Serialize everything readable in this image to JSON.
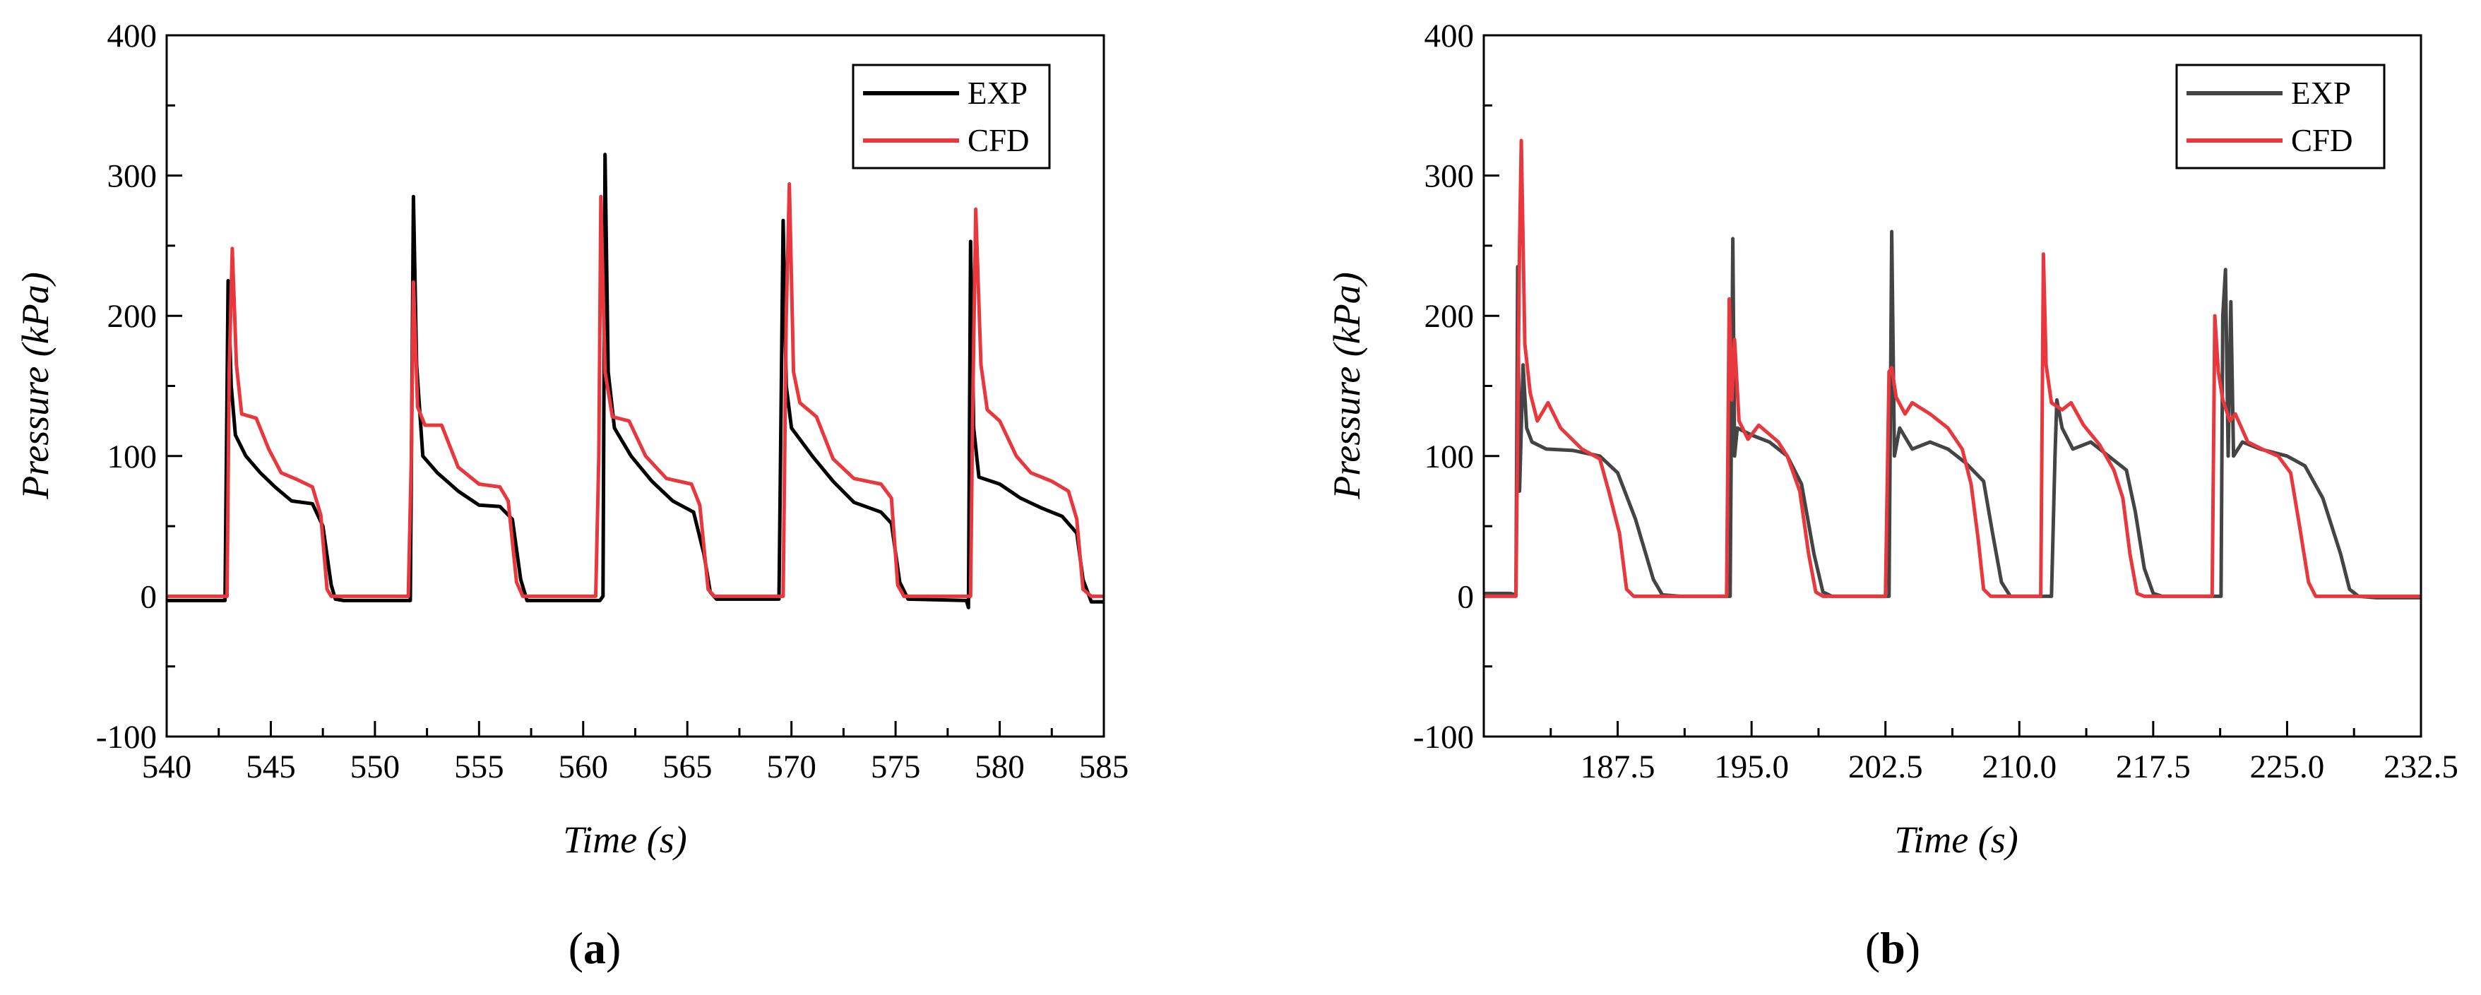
{
  "chart_data": [
    {
      "type": "line",
      "panel_label": "a",
      "xlabel": "Time (s)",
      "ylabel": "Pressure (kPa)",
      "xlim": [
        540,
        585
      ],
      "ylim": [
        -100,
        400
      ],
      "xticks": [
        540,
        545,
        550,
        555,
        560,
        565,
        570,
        575,
        580,
        585
      ],
      "yticks": [
        -100,
        0,
        100,
        200,
        300,
        400
      ],
      "xtick_labels": [
        "540",
        "545",
        "550",
        "555",
        "560",
        "565",
        "570",
        "575",
        "580",
        "585"
      ],
      "ytick_labels": [
        "-100",
        "0",
        "100",
        "200",
        "300",
        "400"
      ],
      "legend_position": "top-right",
      "series": [
        {
          "name": "EXP",
          "color": "#000000",
          "points": [
            [
              540,
              -3
            ],
            [
              542.8,
              -3
            ],
            [
              542.95,
              225
            ],
            [
              543.1,
              150
            ],
            [
              543.3,
              115
            ],
            [
              543.8,
              100
            ],
            [
              544.5,
              88
            ],
            [
              545.2,
              78
            ],
            [
              546,
              68
            ],
            [
              547,
              66
            ],
            [
              547.5,
              50
            ],
            [
              547.9,
              8
            ],
            [
              548.1,
              -2
            ],
            [
              548.5,
              -3
            ],
            [
              551.7,
              -3
            ],
            [
              551.85,
              285
            ],
            [
              552.0,
              165
            ],
            [
              552.3,
              100
            ],
            [
              553,
              88
            ],
            [
              554,
              75
            ],
            [
              555,
              65
            ],
            [
              556,
              64
            ],
            [
              556.6,
              55
            ],
            [
              557,
              12
            ],
            [
              557.3,
              -3
            ],
            [
              560.8,
              -3
            ],
            [
              560.95,
              0
            ],
            [
              561.05,
              315
            ],
            [
              561.2,
              160
            ],
            [
              561.5,
              120
            ],
            [
              562.3,
              100
            ],
            [
              563.3,
              82
            ],
            [
              564.3,
              68
            ],
            [
              565.3,
              60
            ],
            [
              565.8,
              30
            ],
            [
              566.1,
              3
            ],
            [
              566.4,
              -2
            ],
            [
              569.4,
              -2
            ],
            [
              569.6,
              268
            ],
            [
              569.75,
              150
            ],
            [
              570,
              120
            ],
            [
              571,
              100
            ],
            [
              572,
              82
            ],
            [
              573,
              67
            ],
            [
              574.3,
              60
            ],
            [
              574.8,
              52
            ],
            [
              575.2,
              10
            ],
            [
              575.6,
              -2
            ],
            [
              578.4,
              -3
            ],
            [
              578.5,
              -8
            ],
            [
              578.6,
              253
            ],
            [
              578.75,
              120
            ],
            [
              579,
              85
            ],
            [
              580,
              80
            ],
            [
              581,
              70
            ],
            [
              582,
              63
            ],
            [
              583,
              57
            ],
            [
              583.7,
              45
            ],
            [
              584,
              12
            ],
            [
              584.4,
              -4
            ],
            [
              585,
              -4
            ]
          ]
        },
        {
          "name": "CFD",
          "color": "#e8383d",
          "points": [
            [
              540,
              0
            ],
            [
              542.9,
              0
            ],
            [
              543.0,
              160
            ],
            [
              543.15,
              248
            ],
            [
              543.35,
              165
            ],
            [
              543.6,
              130
            ],
            [
              544.3,
              127
            ],
            [
              544.9,
              105
            ],
            [
              545.5,
              88
            ],
            [
              546.3,
              83
            ],
            [
              547,
              78
            ],
            [
              547.4,
              58
            ],
            [
              547.7,
              5
            ],
            [
              547.9,
              0
            ],
            [
              551.6,
              0
            ],
            [
              551.75,
              100
            ],
            [
              551.85,
              224
            ],
            [
              552.05,
              135
            ],
            [
              552.4,
              122
            ],
            [
              553.2,
              122
            ],
            [
              554,
              92
            ],
            [
              555,
              80
            ],
            [
              556,
              78
            ],
            [
              556.4,
              68
            ],
            [
              556.8,
              10
            ],
            [
              557.1,
              0
            ],
            [
              560.6,
              0
            ],
            [
              560.75,
              100
            ],
            [
              560.85,
              285
            ],
            [
              561.05,
              160
            ],
            [
              561.4,
              128
            ],
            [
              562.2,
              125
            ],
            [
              563,
              100
            ],
            [
              564,
              84
            ],
            [
              565.2,
              80
            ],
            [
              565.6,
              65
            ],
            [
              566,
              5
            ],
            [
              566.3,
              0
            ],
            [
              569.6,
              0
            ],
            [
              569.75,
              200
            ],
            [
              569.9,
              294
            ],
            [
              570.1,
              160
            ],
            [
              570.4,
              138
            ],
            [
              571.2,
              128
            ],
            [
              572,
              98
            ],
            [
              573,
              84
            ],
            [
              574.3,
              80
            ],
            [
              574.8,
              70
            ],
            [
              575.1,
              8
            ],
            [
              575.4,
              0
            ],
            [
              578.6,
              0
            ],
            [
              578.7,
              130
            ],
            [
              578.85,
              276
            ],
            [
              579.1,
              165
            ],
            [
              579.4,
              133
            ],
            [
              580,
              125
            ],
            [
              580.8,
              100
            ],
            [
              581.5,
              88
            ],
            [
              582.5,
              82
            ],
            [
              583.3,
              75
            ],
            [
              583.7,
              55
            ],
            [
              584,
              5
            ],
            [
              584.4,
              0
            ],
            [
              585,
              0
            ]
          ]
        }
      ]
    },
    {
      "type": "line",
      "panel_label": "b",
      "xlabel": "Time (s)",
      "ylabel": "Pressure (kPa)",
      "xlim": [
        180,
        232.5
      ],
      "ylim": [
        -100,
        400
      ],
      "xticks": [
        187.5,
        195.0,
        202.5,
        210.0,
        217.5,
        225.0,
        232.5
      ],
      "yticks": [
        -100,
        0,
        100,
        200,
        300,
        400
      ],
      "xtick_labels": [
        "187.5",
        "195.0",
        "202.5",
        "210.0",
        "217.5",
        "225.0",
        "232.5"
      ],
      "ytick_labels": [
        "-100",
        "0",
        "100",
        "200",
        "300",
        "400"
      ],
      "legend_position": "top-right",
      "series": [
        {
          "name": "EXP",
          "color": "#444444",
          "points": [
            [
              180,
              2
            ],
            [
              181.5,
              2
            ],
            [
              181.8,
              1
            ],
            [
              181.9,
              235
            ],
            [
              182.0,
              75
            ],
            [
              182.2,
              165
            ],
            [
              182.4,
              120
            ],
            [
              182.7,
              110
            ],
            [
              183.5,
              105
            ],
            [
              185,
              104
            ],
            [
              186.5,
              100
            ],
            [
              187.5,
              88
            ],
            [
              188.5,
              55
            ],
            [
              189.5,
              12
            ],
            [
              190,
              1
            ],
            [
              191,
              0
            ],
            [
              193.8,
              0
            ],
            [
              193.95,
              255
            ],
            [
              194.05,
              100
            ],
            [
              194.2,
              120
            ],
            [
              195,
              115
            ],
            [
              196,
              110
            ],
            [
              197,
              100
            ],
            [
              197.8,
              80
            ],
            [
              198.5,
              30
            ],
            [
              199,
              3
            ],
            [
              199.5,
              0
            ],
            [
              202.7,
              0
            ],
            [
              202.85,
              260
            ],
            [
              203,
              100
            ],
            [
              203.3,
              120
            ],
            [
              204,
              105
            ],
            [
              205,
              110
            ],
            [
              206,
              105
            ],
            [
              207,
              95
            ],
            [
              208,
              82
            ],
            [
              208.5,
              45
            ],
            [
              209,
              10
            ],
            [
              209.5,
              0
            ],
            [
              211.8,
              0
            ],
            [
              212,
              100
            ],
            [
              212.1,
              140
            ],
            [
              212.4,
              120
            ],
            [
              213,
              105
            ],
            [
              214,
              110
            ],
            [
              215,
              100
            ],
            [
              216,
              90
            ],
            [
              216.5,
              60
            ],
            [
              217,
              20
            ],
            [
              217.5,
              2
            ],
            [
              218,
              0
            ],
            [
              221.3,
              0
            ],
            [
              221.4,
              200
            ],
            [
              221.55,
              233
            ],
            [
              221.7,
              100
            ],
            [
              221.85,
              210
            ],
            [
              222,
              100
            ],
            [
              222.5,
              110
            ],
            [
              223.5,
              105
            ],
            [
              225,
              100
            ],
            [
              226,
              93
            ],
            [
              227,
              70
            ],
            [
              228,
              30
            ],
            [
              228.5,
              5
            ],
            [
              229,
              0
            ],
            [
              230,
              -1
            ],
            [
              232.5,
              -1
            ]
          ]
        },
        {
          "name": "CFD",
          "color": "#e8383d",
          "points": [
            [
              180,
              0
            ],
            [
              181.8,
              0
            ],
            [
              182.0,
              250
            ],
            [
              182.1,
              325
            ],
            [
              182.3,
              180
            ],
            [
              182.6,
              145
            ],
            [
              183,
              125
            ],
            [
              183.6,
              138
            ],
            [
              184.3,
              120
            ],
            [
              185.5,
              105
            ],
            [
              186.5,
              98
            ],
            [
              187,
              75
            ],
            [
              187.6,
              45
            ],
            [
              188,
              5
            ],
            [
              188.4,
              0
            ],
            [
              193.6,
              0
            ],
            [
              193.75,
              212
            ],
            [
              193.9,
              140
            ],
            [
              194.05,
              183
            ],
            [
              194.3,
              125
            ],
            [
              194.8,
              112
            ],
            [
              195.4,
              122
            ],
            [
              196.5,
              110
            ],
            [
              197,
              100
            ],
            [
              197.7,
              75
            ],
            [
              198.2,
              30
            ],
            [
              198.6,
              3
            ],
            [
              199,
              0
            ],
            [
              202.5,
              0
            ],
            [
              202.7,
              160
            ],
            [
              202.85,
              163
            ],
            [
              203.1,
              142
            ],
            [
              203.6,
              130
            ],
            [
              204,
              138
            ],
            [
              205,
              130
            ],
            [
              206,
              120
            ],
            [
              206.8,
              105
            ],
            [
              207.3,
              80
            ],
            [
              207.7,
              40
            ],
            [
              208,
              5
            ],
            [
              208.4,
              0
            ],
            [
              211.2,
              0
            ],
            [
              211.35,
              244
            ],
            [
              211.5,
              165
            ],
            [
              211.8,
              138
            ],
            [
              212.4,
              133
            ],
            [
              212.9,
              138
            ],
            [
              213.6,
              122
            ],
            [
              214.5,
              108
            ],
            [
              215.3,
              90
            ],
            [
              215.8,
              70
            ],
            [
              216.2,
              30
            ],
            [
              216.6,
              2
            ],
            [
              217,
              0
            ],
            [
              220.8,
              0
            ],
            [
              220.95,
              200
            ],
            [
              221.15,
              160
            ],
            [
              221.4,
              140
            ],
            [
              221.8,
              125
            ],
            [
              222.1,
              130
            ],
            [
              222.8,
              110
            ],
            [
              223.6,
              105
            ],
            [
              224.5,
              100
            ],
            [
              225.2,
              88
            ],
            [
              225.7,
              50
            ],
            [
              226.2,
              10
            ],
            [
              226.6,
              0
            ],
            [
              232.5,
              0
            ]
          ]
        }
      ]
    }
  ]
}
